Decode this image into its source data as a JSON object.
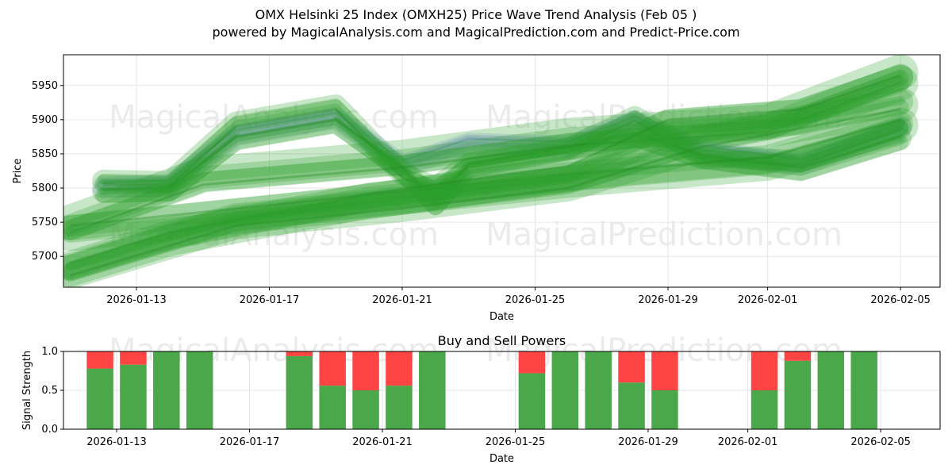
{
  "header": {
    "title": "OMX Helsinki 25 Index (OMXH25) Price Wave Trend Analysis (Feb 05 )",
    "subtitle": "powered by MagicalAnalysis.com and MagicalPrediction.com and Predict-Price.com"
  },
  "watermarks": [
    "MagicalAnalysis.com",
    "MagicalPrediction.com"
  ],
  "colors": {
    "green": "#2ca02c",
    "blue": "#7b8fd6",
    "buy": "#4aa84a",
    "sell": "#ff4444",
    "grid": "#e6e6e6"
  },
  "chart_data": [
    {
      "type": "line",
      "title": "OMX Helsinki 25 Index (OMXH25) Price Wave Trend Analysis (Feb 05 )",
      "xlabel": "Date",
      "ylabel": "Price",
      "ylim": [
        5655,
        5995
      ],
      "grid": true,
      "x_ticks": [
        "2026-01-13",
        "2026-01-17",
        "2026-01-21",
        "2026-01-25",
        "2026-01-29",
        "2026-02-01",
        "2026-02-05"
      ],
      "y_ticks": [
        5700,
        5750,
        5800,
        5850,
        5900,
        5950
      ],
      "series": [
        {
          "name": "historical-blue-band",
          "kind": "historical",
          "x": [
            "2026-01-12",
            "2026-01-14",
            "2026-01-16",
            "2026-01-19",
            "2026-01-21",
            "2026-01-23",
            "2026-01-26",
            "2026-01-28",
            "2026-01-30",
            "2026-02-02",
            "2026-02-05"
          ],
          "y": [
            5808,
            5812,
            5885,
            5910,
            5840,
            5872,
            5868,
            5905,
            5862,
            5842,
            5895
          ]
        },
        {
          "name": "historical-green-band-1",
          "kind": "historical",
          "x": [
            "2026-01-12",
            "2026-01-14",
            "2026-01-16",
            "2026-01-19",
            "2026-01-21",
            "2026-01-22",
            "2026-01-23",
            "2026-01-26",
            "2026-01-28",
            "2026-01-30",
            "2026-02-02",
            "2026-02-05"
          ],
          "y": [
            5805,
            5803,
            5890,
            5915,
            5815,
            5795,
            5830,
            5852,
            5898,
            5842,
            5833,
            5885
          ]
        },
        {
          "name": "historical-green-band-2",
          "kind": "historical",
          "x": [
            "2026-01-12",
            "2026-01-14",
            "2026-01-16",
            "2026-01-19",
            "2026-01-21",
            "2026-01-22",
            "2026-01-23",
            "2026-01-26",
            "2026-01-28",
            "2026-01-30",
            "2026-02-02",
            "2026-02-05"
          ],
          "y": [
            5798,
            5800,
            5875,
            5900,
            5830,
            5780,
            5835,
            5860,
            5880,
            5848,
            5830,
            5875
          ]
        },
        {
          "name": "trend-band-1",
          "kind": "trend",
          "x": [
            "2026-01-11",
            "2026-01-15",
            "2026-01-21",
            "2026-01-26",
            "2026-02-01",
            "2026-02-05"
          ],
          "y": [
            5735,
            5805,
            5830,
            5862,
            5882,
            5955
          ]
        },
        {
          "name": "trend-band-2",
          "kind": "trend",
          "x": [
            "2026-01-11",
            "2026-01-14",
            "2026-01-20",
            "2026-01-26",
            "2026-02-01",
            "2026-02-05"
          ],
          "y": [
            5690,
            5735,
            5790,
            5820,
            5845,
            5900
          ]
        },
        {
          "name": "trend-band-3",
          "kind": "trend",
          "x": [
            "2026-01-11",
            "2026-01-16",
            "2026-01-21",
            "2026-01-26",
            "2026-01-30",
            "2026-02-05"
          ],
          "y": [
            5672,
            5745,
            5770,
            5800,
            5860,
            5915
          ]
        },
        {
          "name": "trend-band-4",
          "kind": "trend",
          "x": [
            "2026-01-11",
            "2026-01-19",
            "2026-01-26",
            "2026-01-29",
            "2026-02-02",
            "2026-02-05"
          ],
          "y": [
            5745,
            5785,
            5832,
            5900,
            5915,
            5965
          ]
        }
      ]
    },
    {
      "type": "bar",
      "title": "Buy and Sell Powers",
      "xlabel": "Date",
      "ylabel": "Signal Strength",
      "ylim": [
        0,
        1
      ],
      "grid": true,
      "x_ticks": [
        "2026-01-13",
        "2026-01-17",
        "2026-01-21",
        "2026-01-25",
        "2026-01-29",
        "2026-02-01",
        "2026-02-05"
      ],
      "y_ticks": [
        "0.0",
        "0.5",
        "1.0"
      ],
      "categories": [
        "2026-01-12",
        "2026-01-13",
        "2026-01-14",
        "2026-01-15",
        "2026-01-18",
        "2026-01-19",
        "2026-01-20",
        "2026-01-21",
        "2026-01-22",
        "2026-01-25",
        "2026-01-26",
        "2026-01-27",
        "2026-01-28",
        "2026-01-29",
        "2026-02-01",
        "2026-02-02",
        "2026-02-03",
        "2026-02-04"
      ],
      "series": [
        {
          "name": "Buy",
          "values": [
            0.78,
            0.83,
            1.0,
            1.0,
            0.94,
            0.56,
            0.5,
            0.56,
            1.0,
            0.72,
            1.0,
            1.0,
            0.6,
            0.5,
            0.5,
            0.88,
            1.0,
            1.0
          ]
        },
        {
          "name": "Sell",
          "values": [
            0.22,
            0.17,
            0.0,
            0.0,
            0.06,
            0.44,
            0.5,
            0.44,
            0.0,
            0.28,
            0.0,
            0.0,
            0.4,
            0.5,
            0.5,
            0.12,
            0.0,
            0.0
          ]
        }
      ]
    }
  ]
}
